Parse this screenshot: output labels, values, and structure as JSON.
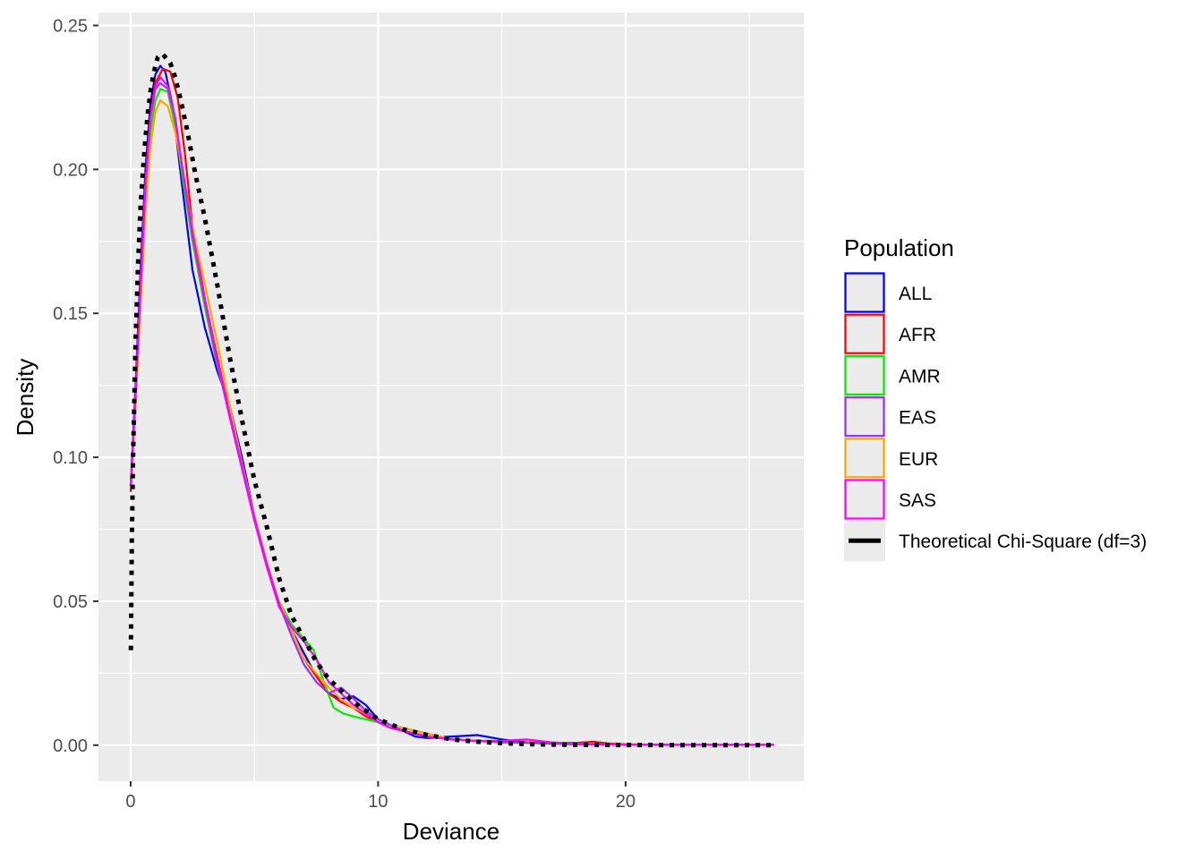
{
  "chart_data": {
    "type": "line",
    "xlabel": "Deviance",
    "ylabel": "Density",
    "xlim": [
      -1.3,
      27.2
    ],
    "ylim": [
      -0.0125,
      0.2545
    ],
    "x_ticks": [
      0,
      10,
      20
    ],
    "x_tick_labels": [
      "0",
      "10",
      "20"
    ],
    "y_ticks": [
      0,
      0.05,
      0.1,
      0.15,
      0.2,
      0.25
    ],
    "y_tick_labels": [
      "0.00",
      "0.05",
      "0.10",
      "0.15",
      "0.20",
      "0.25"
    ],
    "grid": true,
    "legend": {
      "title": "Population",
      "placement": "right"
    },
    "series": [
      {
        "name": "ALL",
        "color": "#0000ff",
        "style": "solid",
        "points": [
          [
            0,
            0.09
          ],
          [
            0.2,
            0.125
          ],
          [
            0.4,
            0.165
          ],
          [
            0.6,
            0.2
          ],
          [
            0.8,
            0.223
          ],
          [
            1.0,
            0.233
          ],
          [
            1.2,
            0.236
          ],
          [
            1.4,
            0.234
          ],
          [
            1.7,
            0.222
          ],
          [
            2.0,
            0.2
          ],
          [
            2.5,
            0.165
          ],
          [
            3.0,
            0.145
          ],
          [
            3.5,
            0.13
          ],
          [
            4.0,
            0.118
          ],
          [
            4.5,
            0.1
          ],
          [
            5.0,
            0.08
          ],
          [
            5.5,
            0.063
          ],
          [
            6.0,
            0.049
          ],
          [
            6.5,
            0.04
          ],
          [
            7.0,
            0.032
          ],
          [
            7.5,
            0.024
          ],
          [
            8.0,
            0.018
          ],
          [
            8.5,
            0.016
          ],
          [
            9.0,
            0.017
          ],
          [
            9.5,
            0.014
          ],
          [
            10.0,
            0.009
          ],
          [
            10.5,
            0.007
          ],
          [
            11.0,
            0.005
          ],
          [
            11.5,
            0.003
          ],
          [
            12.0,
            0.0025
          ],
          [
            13.0,
            0.003
          ],
          [
            14.0,
            0.0035
          ],
          [
            15.0,
            0.002
          ],
          [
            16.0,
            0.001
          ],
          [
            17.0,
            0.0005
          ],
          [
            18.0,
            0.0005
          ],
          [
            19.0,
            0.0003
          ],
          [
            20.0,
            0.0002
          ],
          [
            22.0,
            0.0001
          ],
          [
            24.0,
            0.0001
          ],
          [
            26.0,
            0.0001
          ]
        ]
      },
      {
        "name": "AFR",
        "color": "#ff0000",
        "style": "solid",
        "points": [
          [
            0,
            0.088
          ],
          [
            0.2,
            0.12
          ],
          [
            0.4,
            0.16
          ],
          [
            0.6,
            0.195
          ],
          [
            0.8,
            0.219
          ],
          [
            1.0,
            0.23
          ],
          [
            1.3,
            0.235
          ],
          [
            1.6,
            0.234
          ],
          [
            1.9,
            0.225
          ],
          [
            2.2,
            0.205
          ],
          [
            2.5,
            0.18
          ],
          [
            3.0,
            0.155
          ],
          [
            3.5,
            0.135
          ],
          [
            4.0,
            0.115
          ],
          [
            4.5,
            0.097
          ],
          [
            5.0,
            0.079
          ],
          [
            5.5,
            0.063
          ],
          [
            6.0,
            0.05
          ],
          [
            6.5,
            0.04
          ],
          [
            7.0,
            0.03
          ],
          [
            7.5,
            0.024
          ],
          [
            8.0,
            0.018
          ],
          [
            8.5,
            0.015
          ],
          [
            9.0,
            0.013
          ],
          [
            9.5,
            0.01
          ],
          [
            10.0,
            0.008
          ],
          [
            10.5,
            0.006
          ],
          [
            11.0,
            0.005
          ],
          [
            12.0,
            0.003
          ],
          [
            13.0,
            0.002
          ],
          [
            14.0,
            0.0015
          ],
          [
            15.0,
            0.001
          ],
          [
            16.0,
            0.001
          ],
          [
            17.0,
            0.0008
          ],
          [
            18.0,
            0.0008
          ],
          [
            18.7,
            0.0012
          ],
          [
            19.3,
            0.0006
          ],
          [
            20.0,
            0.0003
          ],
          [
            22.0,
            0.0001
          ],
          [
            26.0,
            0.0001
          ]
        ]
      },
      {
        "name": "AMR",
        "color": "#00ee00",
        "style": "solid",
        "points": [
          [
            0,
            0.09
          ],
          [
            0.2,
            0.12
          ],
          [
            0.4,
            0.155
          ],
          [
            0.6,
            0.19
          ],
          [
            0.8,
            0.213
          ],
          [
            1.0,
            0.224
          ],
          [
            1.2,
            0.228
          ],
          [
            1.5,
            0.227
          ],
          [
            1.8,
            0.215
          ],
          [
            2.1,
            0.197
          ],
          [
            2.5,
            0.175
          ],
          [
            3.0,
            0.152
          ],
          [
            3.5,
            0.132
          ],
          [
            4.0,
            0.115
          ],
          [
            4.5,
            0.097
          ],
          [
            5.0,
            0.079
          ],
          [
            5.5,
            0.063
          ],
          [
            6.0,
            0.05
          ],
          [
            6.5,
            0.042
          ],
          [
            7.0,
            0.037
          ],
          [
            7.4,
            0.033
          ],
          [
            7.8,
            0.022
          ],
          [
            8.2,
            0.013
          ],
          [
            8.6,
            0.011
          ],
          [
            9.0,
            0.01
          ],
          [
            9.5,
            0.009
          ],
          [
            10.0,
            0.008
          ],
          [
            10.5,
            0.007
          ],
          [
            11.0,
            0.006
          ],
          [
            12.0,
            0.004
          ],
          [
            13.0,
            0.002
          ],
          [
            14.0,
            0.0015
          ],
          [
            15.0,
            0.001
          ],
          [
            16.0,
            0.0008
          ],
          [
            17.0,
            0.0005
          ],
          [
            18.0,
            0.0003
          ],
          [
            20.0,
            0.0002
          ],
          [
            22.0,
            0.0001
          ],
          [
            26.0,
            0.0001
          ]
        ]
      },
      {
        "name": "EAS",
        "color": "#9b30ff",
        "style": "solid",
        "points": [
          [
            0,
            0.09
          ],
          [
            0.2,
            0.122
          ],
          [
            0.4,
            0.16
          ],
          [
            0.6,
            0.195
          ],
          [
            0.8,
            0.218
          ],
          [
            1.0,
            0.228
          ],
          [
            1.2,
            0.23
          ],
          [
            1.5,
            0.228
          ],
          [
            1.8,
            0.218
          ],
          [
            2.1,
            0.2
          ],
          [
            2.5,
            0.178
          ],
          [
            3.0,
            0.155
          ],
          [
            3.5,
            0.134
          ],
          [
            4.0,
            0.115
          ],
          [
            4.5,
            0.097
          ],
          [
            5.0,
            0.079
          ],
          [
            5.5,
            0.063
          ],
          [
            6.0,
            0.049
          ],
          [
            6.5,
            0.038
          ],
          [
            7.0,
            0.028
          ],
          [
            7.5,
            0.022
          ],
          [
            8.0,
            0.018
          ],
          [
            8.5,
            0.02
          ],
          [
            8.9,
            0.017
          ],
          [
            9.5,
            0.012
          ],
          [
            10.0,
            0.009
          ],
          [
            10.5,
            0.007
          ],
          [
            11.0,
            0.005
          ],
          [
            12.0,
            0.003
          ],
          [
            13.0,
            0.002
          ],
          [
            14.0,
            0.0015
          ],
          [
            15.0,
            0.001
          ],
          [
            16.0,
            0.0008
          ],
          [
            17.0,
            0.0005
          ],
          [
            18.0,
            0.0003
          ],
          [
            20.0,
            0.0002
          ],
          [
            22.0,
            0.0001
          ],
          [
            26.0,
            0.0001
          ]
        ]
      },
      {
        "name": "EUR",
        "color": "#ffa500",
        "style": "solid",
        "points": [
          [
            0,
            0.089
          ],
          [
            0.2,
            0.118
          ],
          [
            0.4,
            0.152
          ],
          [
            0.6,
            0.185
          ],
          [
            0.8,
            0.208
          ],
          [
            1.0,
            0.22
          ],
          [
            1.2,
            0.224
          ],
          [
            1.5,
            0.222
          ],
          [
            1.8,
            0.213
          ],
          [
            2.1,
            0.2
          ],
          [
            2.5,
            0.18
          ],
          [
            3.0,
            0.16
          ],
          [
            3.5,
            0.14
          ],
          [
            4.0,
            0.118
          ],
          [
            4.5,
            0.098
          ],
          [
            5.0,
            0.08
          ],
          [
            5.5,
            0.064
          ],
          [
            6.0,
            0.05
          ],
          [
            6.5,
            0.04
          ],
          [
            7.0,
            0.03
          ],
          [
            7.5,
            0.025
          ],
          [
            8.0,
            0.02
          ],
          [
            8.5,
            0.016
          ],
          [
            9.0,
            0.013
          ],
          [
            9.5,
            0.011
          ],
          [
            10.0,
            0.009
          ],
          [
            10.5,
            0.007
          ],
          [
            11.0,
            0.006
          ],
          [
            12.0,
            0.004
          ],
          [
            13.0,
            0.002
          ],
          [
            14.0,
            0.0015
          ],
          [
            15.0,
            0.001
          ],
          [
            16.0,
            0.0008
          ],
          [
            17.0,
            0.0005
          ],
          [
            18.0,
            0.0003
          ],
          [
            20.0,
            0.0002
          ],
          [
            22.0,
            0.0001
          ],
          [
            26.0,
            0.0001
          ]
        ]
      },
      {
        "name": "SAS",
        "color": "#ff00ff",
        "style": "solid",
        "points": [
          [
            0,
            0.09
          ],
          [
            0.2,
            0.122
          ],
          [
            0.4,
            0.16
          ],
          [
            0.6,
            0.195
          ],
          [
            0.8,
            0.218
          ],
          [
            1.0,
            0.229
          ],
          [
            1.2,
            0.232
          ],
          [
            1.5,
            0.229
          ],
          [
            1.8,
            0.218
          ],
          [
            2.1,
            0.2
          ],
          [
            2.5,
            0.177
          ],
          [
            3.0,
            0.154
          ],
          [
            3.5,
            0.133
          ],
          [
            4.0,
            0.114
          ],
          [
            4.5,
            0.096
          ],
          [
            5.0,
            0.078
          ],
          [
            5.5,
            0.062
          ],
          [
            6.0,
            0.048
          ],
          [
            6.5,
            0.041
          ],
          [
            7.0,
            0.036
          ],
          [
            7.5,
            0.03
          ],
          [
            8.0,
            0.022
          ],
          [
            8.5,
            0.018
          ],
          [
            9.0,
            0.014
          ],
          [
            9.5,
            0.011
          ],
          [
            10.0,
            0.008
          ],
          [
            10.5,
            0.006
          ],
          [
            11.0,
            0.005
          ],
          [
            12.0,
            0.003
          ],
          [
            13.0,
            0.002
          ],
          [
            14.0,
            0.0015
          ],
          [
            15.0,
            0.0015
          ],
          [
            16.0,
            0.002
          ],
          [
            17.0,
            0.001
          ],
          [
            18.0,
            0.0005
          ],
          [
            20.0,
            0.0002
          ],
          [
            22.0,
            0.0001
          ],
          [
            26.0,
            0.0001
          ]
        ]
      },
      {
        "name": "Theoretical Chi-Square (df=3)",
        "color": "#000000",
        "style": "dotted",
        "points": [
          [
            0.01,
            0.033
          ],
          [
            0.05,
            0.072
          ],
          [
            0.1,
            0.101
          ],
          [
            0.2,
            0.14
          ],
          [
            0.3,
            0.167
          ],
          [
            0.4,
            0.187
          ],
          [
            0.5,
            0.2
          ],
          [
            0.6,
            0.211
          ],
          [
            0.7,
            0.22
          ],
          [
            0.8,
            0.227
          ],
          [
            0.9,
            0.232
          ],
          [
            1.0,
            0.236
          ],
          [
            1.1,
            0.239
          ],
          [
            1.2,
            0.24
          ],
          [
            1.3,
            0.24
          ],
          [
            1.4,
            0.239
          ],
          [
            1.6,
            0.237
          ],
          [
            1.8,
            0.232
          ],
          [
            2.0,
            0.225
          ],
          [
            2.3,
            0.213
          ],
          [
            2.6,
            0.199
          ],
          [
            3.0,
            0.183
          ],
          [
            3.5,
            0.16
          ],
          [
            4.0,
            0.135
          ],
          [
            4.5,
            0.113
          ],
          [
            5.0,
            0.092
          ],
          [
            5.5,
            0.076
          ],
          [
            6.0,
            0.058
          ],
          [
            6.5,
            0.045
          ],
          [
            7.0,
            0.037
          ],
          [
            7.5,
            0.029
          ],
          [
            8.0,
            0.023
          ],
          [
            9.0,
            0.015
          ],
          [
            10.0,
            0.009
          ],
          [
            11.0,
            0.0055
          ],
          [
            12.0,
            0.0035
          ],
          [
            13.0,
            0.002
          ],
          [
            14.0,
            0.0012
          ],
          [
            15.0,
            0.0007
          ],
          [
            16.0,
            0.0004
          ],
          [
            17.0,
            0.0002
          ],
          [
            18.0,
            0.0001
          ],
          [
            20.0,
            5e-05
          ],
          [
            22.0,
            2e-05
          ],
          [
            24.0,
            1e-05
          ],
          [
            26.0,
            1e-05
          ]
        ]
      }
    ]
  }
}
